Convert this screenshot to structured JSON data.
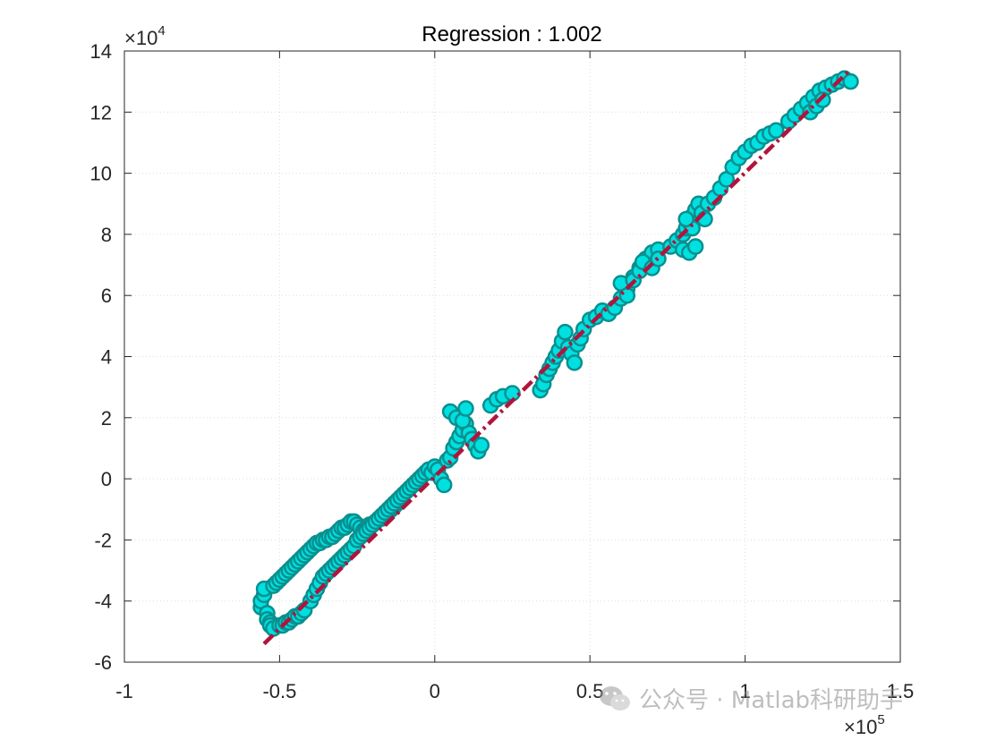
{
  "chart_data": {
    "type": "scatter",
    "title": "Regression :   1.002",
    "xlabel": "",
    "ylabel": "",
    "xlim": [
      -1,
      1.5
    ],
    "ylim": [
      -6,
      14
    ],
    "x_exponent_label": "×10",
    "x_exponent": "5",
    "y_exponent_label": "×10",
    "y_exponent": "4",
    "x_ticks": [
      "-1",
      "-0.5",
      "0",
      "0.5",
      "1",
      "1.5"
    ],
    "y_ticks": [
      "-6",
      "-4",
      "-2",
      "0",
      "2",
      "4",
      "6",
      "8",
      "10",
      "12",
      "14"
    ],
    "grid": true,
    "colors": {
      "marker_fill": "#00e0e0",
      "marker_edge": "#0a8f8f",
      "fit_line": "#b0143c"
    },
    "fit_line": {
      "x": [
        -0.55,
        1.34
      ],
      "y": [
        -5.4,
        13.4
      ],
      "style": "dash-dot"
    },
    "x": [
      -0.56,
      -0.56,
      -0.55,
      -0.55,
      -0.54,
      -0.54,
      -0.53,
      -0.52,
      -0.52,
      -0.51,
      -0.5,
      -0.49,
      -0.48,
      -0.47,
      -0.46,
      -0.45,
      -0.44,
      -0.43,
      -0.42,
      -0.41,
      -0.4,
      -0.39,
      -0.38,
      -0.37,
      -0.36,
      -0.35,
      -0.34,
      -0.33,
      -0.32,
      -0.31,
      -0.3,
      -0.29,
      -0.28,
      -0.27,
      -0.26,
      -0.25,
      -0.24,
      -0.23,
      -0.22,
      -0.21,
      -0.2,
      -0.19,
      -0.18,
      -0.17,
      -0.16,
      -0.15,
      -0.14,
      -0.13,
      -0.12,
      -0.11,
      -0.53,
      -0.52,
      -0.5,
      -0.49,
      -0.48,
      -0.47,
      -0.46,
      -0.45,
      -0.44,
      -0.43,
      -0.42,
      -0.4,
      -0.39,
      -0.38,
      -0.37,
      -0.36,
      -0.35,
      -0.34,
      -0.33,
      -0.32,
      -0.31,
      -0.3,
      -0.29,
      -0.28,
      -0.27,
      -0.26,
      -0.25,
      -0.24,
      -0.23,
      -0.22,
      -0.21,
      -0.2,
      -0.19,
      -0.18,
      -0.17,
      -0.16,
      -0.15,
      -0.14,
      -0.13,
      -0.12,
      -0.11,
      -0.1,
      -0.09,
      -0.08,
      -0.07,
      -0.06,
      -0.05,
      -0.04,
      -0.03,
      -0.02,
      -0.01,
      0.0,
      0.01,
      0.02,
      0.03,
      0.04,
      0.05,
      0.06,
      0.07,
      0.08,
      0.09,
      0.1,
      0.11,
      0.12,
      0.13,
      0.14,
      0.15,
      0.05,
      0.07,
      0.09,
      0.1,
      0.18,
      0.2,
      0.22,
      0.25,
      0.34,
      0.35,
      0.36,
      0.37,
      0.38,
      0.39,
      0.4,
      0.41,
      0.42,
      0.43,
      0.44,
      0.45,
      0.46,
      0.47,
      0.48,
      0.5,
      0.52,
      0.54,
      0.56,
      0.58,
      0.6,
      0.62,
      0.64,
      0.66,
      0.68,
      0.7,
      0.72,
      0.6,
      0.62,
      0.64,
      0.66,
      0.67,
      0.7,
      0.72,
      0.76,
      0.78,
      0.8,
      0.81,
      0.82,
      0.83,
      0.84,
      0.85,
      0.86,
      0.87,
      0.88,
      0.9,
      0.92,
      0.94,
      0.96,
      0.98,
      1.0,
      1.02,
      1.04,
      1.06,
      1.08,
      1.1,
      1.14,
      1.16,
      1.18,
      1.2,
      1.22,
      1.24,
      1.26,
      1.28,
      1.3,
      1.32,
      1.34,
      1.21,
      1.23,
      1.25,
      0.8,
      0.82,
      0.84,
      0.83,
      0.81
    ],
    "y": [
      -4.2,
      -4.0,
      -3.8,
      -3.6,
      -4.4,
      -4.6,
      -4.7,
      -4.8,
      -3.5,
      -3.4,
      -3.3,
      -3.2,
      -3.1,
      -3.0,
      -2.9,
      -2.8,
      -2.7,
      -2.6,
      -2.5,
      -2.4,
      -2.3,
      -2.2,
      -2.1,
      -2.1,
      -2.0,
      -2.0,
      -1.9,
      -1.9,
      -1.8,
      -1.7,
      -1.6,
      -1.6,
      -1.5,
      -1.4,
      -1.4,
      -1.5,
      -1.6,
      -1.7,
      -1.6,
      -1.5,
      -1.5,
      -1.4,
      -1.3,
      -1.3,
      -1.2,
      -1.1,
      -1.0,
      -0.9,
      -0.8,
      -0.7,
      -4.8,
      -4.9,
      -4.8,
      -4.8,
      -4.7,
      -4.7,
      -4.6,
      -4.5,
      -4.5,
      -4.4,
      -4.3,
      -4.0,
      -3.8,
      -3.6,
      -3.4,
      -3.2,
      -3.1,
      -3.0,
      -2.9,
      -2.8,
      -2.7,
      -2.6,
      -2.5,
      -2.4,
      -2.3,
      -2.2,
      -2.0,
      -1.9,
      -1.8,
      -1.7,
      -1.6,
      -1.5,
      -1.4,
      -1.3,
      -1.2,
      -1.1,
      -1.0,
      -0.9,
      -0.8,
      -0.7,
      -0.6,
      -0.5,
      -0.4,
      -0.3,
      -0.2,
      -0.1,
      0.0,
      0.1,
      0.2,
      0.3,
      0.2,
      0.4,
      0.3,
      0.0,
      -0.2,
      0.6,
      0.7,
      1.0,
      1.2,
      1.4,
      1.6,
      1.8,
      1.5,
      1.3,
      1.1,
      0.9,
      1.1,
      2.2,
      2.0,
      1.9,
      2.3,
      2.4,
      2.6,
      2.7,
      2.8,
      2.9,
      3.1,
      3.4,
      3.6,
      3.8,
      4.0,
      4.2,
      4.5,
      4.8,
      4.3,
      4.1,
      3.8,
      4.4,
      4.6,
      4.9,
      5.2,
      5.3,
      5.5,
      5.4,
      5.6,
      5.9,
      6.2,
      6.6,
      6.9,
      7.2,
      7.4,
      7.5,
      6.4,
      6.0,
      6.5,
      6.8,
      7.1,
      6.9,
      7.2,
      7.6,
      7.8,
      8.0,
      8.2,
      8.4,
      8.6,
      8.8,
      9.0,
      8.7,
      8.5,
      9.0,
      9.2,
      9.5,
      9.8,
      10.2,
      10.5,
      10.7,
      10.9,
      11.0,
      11.2,
      11.3,
      11.4,
      11.7,
      11.9,
      12.1,
      12.3,
      12.5,
      12.7,
      12.8,
      12.9,
      13.0,
      13.1,
      13.0,
      12.0,
      12.2,
      12.4,
      7.5,
      7.4,
      7.6,
      8.2,
      8.5
    ]
  }
}
